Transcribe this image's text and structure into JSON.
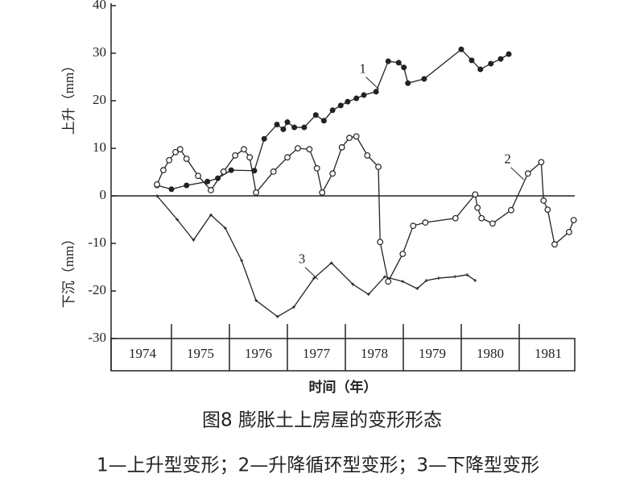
{
  "chart_data": {
    "type": "line",
    "y_label_top": "上升（mm）",
    "y_label_bottom": "下沉（mm）",
    "x_label": "时间（年）",
    "caption": "图8  膨胀土上房屋的变形形态",
    "legend_text": "1—上升型变形；2—升降循环型变形；3—下降型变形",
    "xlim": [
      1974,
      1982
    ],
    "ylim": [
      -30,
      40
    ],
    "yticks": [
      -30,
      -20,
      -10,
      0,
      10,
      20,
      30,
      40
    ],
    "xticks": [
      {
        "value": 1974.5,
        "label": "1974"
      },
      {
        "value": 1975.5,
        "label": "1975"
      },
      {
        "value": 1976.5,
        "label": "1976"
      },
      {
        "value": 1977.5,
        "label": "1977"
      },
      {
        "value": 1978.5,
        "label": "1978"
      },
      {
        "value": 1979.5,
        "label": "1979"
      },
      {
        "value": 1980.5,
        "label": "1980"
      },
      {
        "value": 1981.5,
        "label": "1981"
      }
    ],
    "series": [
      {
        "name": "1",
        "color": "#222222",
        "marker": "filled",
        "label_at": [
          1978.3,
          26.5
        ],
        "x": [
          1974.75,
          1975.0,
          1975.26,
          1975.62,
          1975.8,
          1976.03,
          1976.43,
          1976.6,
          1976.82,
          1976.93,
          1977.0,
          1977.12,
          1977.29,
          1977.49,
          1977.63,
          1977.78,
          1977.92,
          1978.04,
          1978.19,
          1978.32,
          1978.53,
          1978.74,
          1978.92,
          1979.01,
          1979.08,
          1979.36,
          1980.0,
          1980.18,
          1980.33,
          1980.51,
          1980.68,
          1980.82
        ],
        "values": [
          2.2,
          1.4,
          2.2,
          3,
          3.7,
          5.4,
          5.3,
          12,
          15,
          14,
          15.5,
          14.4,
          14.4,
          17,
          15.8,
          18,
          19,
          19.8,
          20.5,
          21.2,
          21.9,
          28.3,
          28,
          27,
          23.7,
          24.6,
          30.8,
          28.5,
          26.6,
          27.8,
          28.8,
          29.8
        ]
      },
      {
        "name": "2",
        "color": "#222222",
        "marker": "open",
        "label_at": [
          1980.8,
          7.5
        ],
        "x": [
          1974.75,
          1974.86,
          1974.96,
          1975.07,
          1975.15,
          1975.26,
          1975.46,
          1975.68,
          1975.9,
          1976.1,
          1976.25,
          1976.35,
          1976.46,
          1976.76,
          1977.0,
          1977.18,
          1977.38,
          1977.51,
          1977.6,
          1977.78,
          1977.94,
          1978.07,
          1978.19,
          1978.38,
          1978.57,
          1978.6,
          1978.74,
          1978.99,
          1979.17,
          1979.38,
          1979.9,
          1980.24,
          1980.28,
          1980.35,
          1980.54,
          1980.86,
          1981.15,
          1981.38,
          1981.42,
          1981.49,
          1981.61,
          1981.86,
          1981.94
        ],
        "values": [
          2.4,
          5.4,
          7.5,
          9.2,
          9.8,
          7.8,
          4.2,
          1.2,
          5.1,
          8.5,
          9.8,
          8.1,
          0.7,
          5.1,
          8.1,
          10,
          9.8,
          5.8,
          0.7,
          4.7,
          10.2,
          12.2,
          12.5,
          8.5,
          6.1,
          -9.7,
          -18,
          -12.2,
          -6.3,
          -5.6,
          -4.7,
          0.3,
          -2.5,
          -4.7,
          -5.8,
          -3,
          4.7,
          7.1,
          -1,
          -2.9,
          -10.2,
          -7.6,
          -5.1
        ]
      },
      {
        "name": "3",
        "color": "#222222",
        "marker": "tick",
        "label_at": [
          1977.25,
          -13.5
        ],
        "x": [
          1974.75,
          1975.1,
          1975.38,
          1975.68,
          1975.93,
          1976.21,
          1976.46,
          1976.83,
          1977.11,
          1977.46,
          1977.76,
          1978.13,
          1978.4,
          1978.68,
          1978.99,
          1979.24,
          1979.4,
          1979.61,
          1979.89,
          1980.1,
          1980.24
        ],
        "values": [
          0,
          -5,
          -9.3,
          -4,
          -6.8,
          -13.6,
          -22,
          -25.4,
          -23.4,
          -17.3,
          -14.1,
          -18.6,
          -20.7,
          -17,
          -18,
          -19.5,
          -17.8,
          -17.3,
          -17,
          -16.6,
          -17.8
        ]
      }
    ]
  }
}
